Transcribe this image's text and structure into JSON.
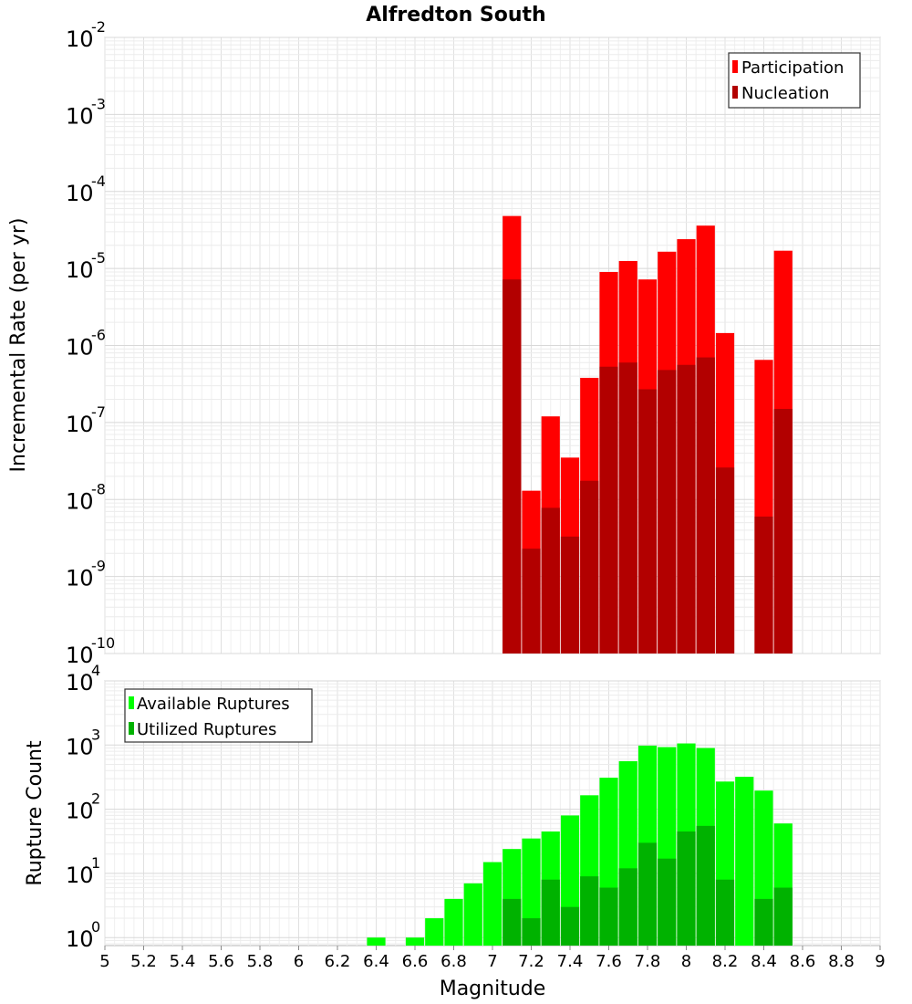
{
  "chart_data": [
    {
      "type": "bar",
      "title": "Alfredton South",
      "ylabel": "Incremental Rate (per yr)",
      "xlabel": "",
      "yscale": "log",
      "ylim": [
        1e-10,
        0.01
      ],
      "xlim": [
        5,
        9
      ],
      "yticks": [
        {
          "base": "10",
          "exp": "-2"
        },
        {
          "base": "10",
          "exp": "-3"
        },
        {
          "base": "10",
          "exp": "-4"
        },
        {
          "base": "10",
          "exp": "-5"
        },
        {
          "base": "10",
          "exp": "-6"
        },
        {
          "base": "10",
          "exp": "-7"
        },
        {
          "base": "10",
          "exp": "-8"
        },
        {
          "base": "10",
          "exp": "-9"
        },
        {
          "base": "10",
          "exp": "-10"
        }
      ],
      "legend_position": "top-right",
      "x": [
        7.1,
        7.2,
        7.3,
        7.4,
        7.5,
        7.6,
        7.7,
        7.8,
        7.9,
        8.0,
        8.1,
        8.2,
        8.3,
        8.4,
        8.5
      ],
      "series": [
        {
          "name": "Participation",
          "color": "#ff0000",
          "values": [
            4.8e-05,
            1.3e-08,
            1.2e-07,
            3.5e-08,
            3.8e-07,
            9e-06,
            1.25e-05,
            7.2e-06,
            1.65e-05,
            2.4e-05,
            3.6e-05,
            1.45e-06,
            null,
            6.5e-07,
            1.7e-05
          ]
        },
        {
          "name": "Nucleation",
          "color": "#b20000",
          "values": [
            7.2e-06,
            2.3e-09,
            7.8e-09,
            3.3e-09,
            1.75e-08,
            5.3e-07,
            6e-07,
            2.7e-07,
            4.8e-07,
            5.6e-07,
            7e-07,
            2.6e-08,
            null,
            6e-09,
            1.5e-07
          ]
        }
      ]
    },
    {
      "type": "bar",
      "title": "",
      "ylabel": "Rupture Count",
      "xlabel": "Magnitude",
      "yscale": "log",
      "ylim": [
        0.75,
        10000.0
      ],
      "xlim": [
        5,
        9
      ],
      "yticks": [
        {
          "base": "10",
          "exp": "4"
        },
        {
          "base": "10",
          "exp": "3"
        },
        {
          "base": "10",
          "exp": "2"
        },
        {
          "base": "10",
          "exp": "1"
        },
        {
          "base": "10",
          "exp": "0"
        }
      ],
      "xticks": [
        "5",
        "5.2",
        "5.4",
        "5.6",
        "5.8",
        "6",
        "6.2",
        "6.4",
        "6.6",
        "6.8",
        "7",
        "7.2",
        "7.4",
        "7.6",
        "7.8",
        "8",
        "8.2",
        "8.4",
        "8.6",
        "8.8",
        "9"
      ],
      "legend_position": "top-left",
      "x": [
        6.4,
        6.5,
        6.6,
        6.7,
        6.8,
        6.9,
        7.0,
        7.1,
        7.2,
        7.3,
        7.4,
        7.5,
        7.6,
        7.7,
        7.8,
        7.9,
        8.0,
        8.1,
        8.2,
        8.3,
        8.4,
        8.5
      ],
      "series": [
        {
          "name": "Available Ruptures",
          "color": "#00ff00",
          "values": [
            1,
            null,
            1,
            2,
            4,
            7,
            15,
            24,
            35,
            45,
            80,
            165,
            310,
            560,
            980,
            930,
            1060,
            900,
            270,
            320,
            195,
            60
          ]
        },
        {
          "name": "Utilized Ruptures",
          "color": "#00b200",
          "values": [
            null,
            null,
            null,
            null,
            null,
            null,
            null,
            4,
            2,
            8,
            3,
            9,
            6,
            12,
            30,
            17,
            45,
            55,
            8,
            null,
            4,
            6
          ]
        }
      ]
    }
  ]
}
